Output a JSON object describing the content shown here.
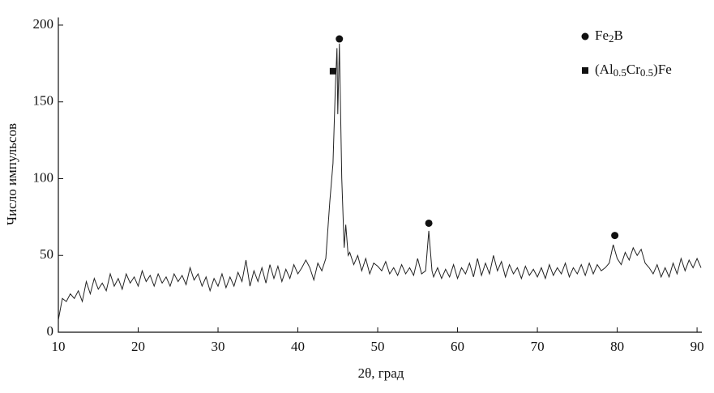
{
  "chart_data": {
    "type": "line",
    "x_label": "2θ, град",
    "y_label": "Число импульсов",
    "xlim": [
      10,
      90.6
    ],
    "ylim": [
      0,
      205
    ],
    "xticks": [
      10,
      20,
      30,
      40,
      50,
      60,
      70,
      80,
      90
    ],
    "yticks": [
      0,
      50,
      100,
      150,
      200
    ],
    "color": "#222",
    "x": [
      10,
      10.5,
      11,
      11.5,
      12,
      12.5,
      13,
      13.5,
      14,
      14.5,
      15,
      15.5,
      16,
      16.5,
      17,
      17.5,
      18,
      18.5,
      19,
      19.5,
      20,
      20.5,
      21,
      21.5,
      22,
      22.5,
      23,
      23.5,
      24,
      24.5,
      25,
      25.5,
      26,
      26.5,
      27,
      27.5,
      28,
      28.5,
      29,
      29.5,
      30,
      30.5,
      31,
      31.5,
      32,
      32.5,
      33,
      33.5,
      34,
      34.5,
      35,
      35.5,
      36,
      36.5,
      37,
      37.5,
      38,
      38.5,
      39,
      39.5,
      40,
      40.5,
      41,
      41.5,
      42,
      42.5,
      43,
      43.5,
      44,
      44.4,
      44.7,
      44.9,
      45.0,
      45.2,
      45.5,
      45.8,
      46,
      46.3,
      46.5,
      47,
      47.5,
      48,
      48.5,
      49,
      49.5,
      50,
      50.5,
      51,
      51.5,
      52,
      52.5,
      53,
      53.5,
      54,
      54.5,
      55,
      55.5,
      56,
      56.4,
      56.8,
      57,
      57.5,
      58,
      58.5,
      59,
      59.5,
      60,
      60.5,
      61,
      61.5,
      62,
      62.5,
      63,
      63.5,
      64,
      64.5,
      65,
      65.5,
      66,
      66.5,
      67,
      67.5,
      68,
      68.5,
      69,
      69.5,
      70,
      70.5,
      71,
      71.5,
      72,
      72.5,
      73,
      73.5,
      74,
      74.5,
      75,
      75.5,
      76,
      76.5,
      77,
      77.5,
      78,
      78.5,
      79,
      79.5,
      80,
      80.5,
      81,
      81.5,
      82,
      82.5,
      83,
      83.5,
      84,
      84.5,
      85,
      85.5,
      86,
      86.5,
      87,
      87.5,
      88,
      88.5,
      89,
      89.5,
      90,
      90.5
    ],
    "values": [
      8,
      22,
      20,
      25,
      22,
      27,
      20,
      33,
      25,
      35,
      28,
      32,
      27,
      38,
      30,
      35,
      28,
      38,
      32,
      36,
      30,
      40,
      33,
      37,
      30,
      38,
      32,
      36,
      30,
      38,
      33,
      37,
      31,
      42,
      34,
      38,
      30,
      36,
      27,
      35,
      30,
      38,
      29,
      36,
      30,
      39,
      33,
      47,
      30,
      40,
      33,
      42,
      32,
      44,
      35,
      43,
      33,
      41,
      35,
      44,
      38,
      42,
      47,
      42,
      34,
      45,
      40,
      48,
      85,
      110,
      160,
      185,
      142,
      188,
      100,
      55,
      70,
      50,
      52,
      44,
      50,
      40,
      48,
      38,
      45,
      43,
      40,
      46,
      38,
      42,
      37,
      44,
      38,
      42,
      37,
      48,
      38,
      40,
      66,
      40,
      36,
      42,
      35,
      41,
      36,
      44,
      35,
      42,
      38,
      45,
      36,
      48,
      37,
      45,
      38,
      50,
      40,
      46,
      36,
      44,
      38,
      42,
      35,
      43,
      37,
      41,
      36,
      42,
      35,
      44,
      37,
      42,
      38,
      45,
      36,
      42,
      38,
      44,
      37,
      45,
      38,
      44,
      40,
      42,
      45,
      57,
      48,
      44,
      52,
      47,
      55,
      50,
      54,
      45,
      42,
      38,
      44,
      36,
      42,
      36,
      45,
      38,
      48,
      40,
      47,
      42,
      48,
      42
    ],
    "markers": [
      {
        "name": [
          "Fe",
          "2",
          "B"
        ],
        "shape": "circle",
        "x": [
          45.2,
          56.4,
          79.7
        ],
        "values": [
          191,
          71,
          63
        ]
      },
      {
        "name": [
          "(Al",
          "0.5",
          "Cr",
          "0.5",
          ")Fe"
        ],
        "shape": "square",
        "x": [
          44.4
        ],
        "values": [
          170
        ]
      }
    ]
  }
}
